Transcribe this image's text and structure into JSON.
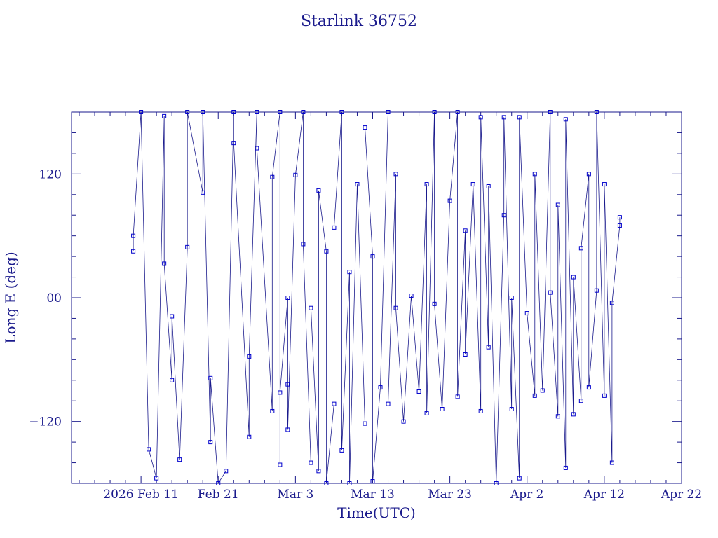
{
  "colors": {
    "frame": "#1a1a8c",
    "series": "#1a1a8c",
    "marker": "#0000cc",
    "background": "#ffffff"
  },
  "chart_data": {
    "type": "line",
    "title": "Starlink 36752",
    "xlabel": "Time(UTC)",
    "ylabel": "Long E (deg)",
    "x_tick_labels": [
      "2026 Feb 11",
      "Feb 21",
      "Mar  3",
      "Mar 13",
      "Mar 23",
      "Apr  2",
      "Apr 12",
      "Apr 22"
    ],
    "y_tick_labels": [
      "−120",
      "00",
      "120"
    ],
    "xlim": [
      "2026-02-02",
      "2026-04-22"
    ],
    "ylim": [
      -180,
      180
    ],
    "grid": false,
    "legend": "none",
    "series": [
      {
        "points": [
          [
            "2026-02-10",
            45
          ],
          [
            "2026-02-10",
            60
          ],
          [
            "2026-02-11",
            180
          ],
          [
            "2026-02-12",
            -147
          ],
          [
            "2026-02-13",
            -175
          ],
          [
            "2026-02-14",
            176
          ],
          [
            "2026-02-14",
            33
          ],
          [
            "2026-02-15",
            -80
          ],
          [
            "2026-02-15",
            -18
          ],
          [
            "2026-02-16",
            -157
          ],
          [
            "2026-02-17",
            49
          ],
          [
            "2026-02-17",
            180
          ],
          [
            "2026-02-19",
            102
          ],
          [
            "2026-02-19",
            180
          ],
          [
            "2026-02-20",
            -140
          ],
          [
            "2026-02-20",
            -78
          ],
          [
            "2026-02-21",
            -180
          ],
          [
            "2026-02-22",
            -168
          ],
          [
            "2026-02-23",
            180
          ],
          [
            "2026-02-23",
            150
          ],
          [
            "2026-02-25",
            -135
          ],
          [
            "2026-02-25",
            -57
          ],
          [
            "2026-02-26",
            180
          ],
          [
            "2026-02-26",
            145
          ],
          [
            "2026-02-28",
            -110
          ],
          [
            "2026-02-28",
            117
          ],
          [
            "2026-03-01",
            180
          ],
          [
            "2026-03-01",
            -162
          ],
          [
            "2026-03-01",
            -92
          ],
          [
            "2026-03-02",
            0
          ],
          [
            "2026-03-02",
            -84
          ],
          [
            "2026-03-02",
            -128
          ],
          [
            "2026-03-03",
            119
          ],
          [
            "2026-03-04",
            180
          ],
          [
            "2026-03-04",
            52
          ],
          [
            "2026-03-05",
            -160
          ],
          [
            "2026-03-05",
            -10
          ],
          [
            "2026-03-06",
            -168
          ],
          [
            "2026-03-06",
            104
          ],
          [
            "2026-03-07",
            45
          ],
          [
            "2026-03-07",
            -180
          ],
          [
            "2026-03-08",
            -103
          ],
          [
            "2026-03-08",
            68
          ],
          [
            "2026-03-09",
            180
          ],
          [
            "2026-03-09",
            -148
          ],
          [
            "2026-03-10",
            25
          ],
          [
            "2026-03-10",
            -180
          ],
          [
            "2026-03-11",
            110
          ],
          [
            "2026-03-12",
            -122
          ],
          [
            "2026-03-12",
            165
          ],
          [
            "2026-03-13",
            40
          ],
          [
            "2026-03-13",
            -178
          ],
          [
            "2026-03-14",
            -87
          ],
          [
            "2026-03-15",
            180
          ],
          [
            "2026-03-15",
            -103
          ],
          [
            "2026-03-16",
            120
          ],
          [
            "2026-03-16",
            -10
          ],
          [
            "2026-03-17",
            -120
          ],
          [
            "2026-03-18",
            2
          ],
          [
            "2026-03-19",
            -91
          ],
          [
            "2026-03-20",
            110
          ],
          [
            "2026-03-20",
            -112
          ],
          [
            "2026-03-21",
            180
          ],
          [
            "2026-03-21",
            -6
          ],
          [
            "2026-03-22",
            -108
          ],
          [
            "2026-03-23",
            94
          ],
          [
            "2026-03-24",
            180
          ],
          [
            "2026-03-24",
            -96
          ],
          [
            "2026-03-25",
            65
          ],
          [
            "2026-03-25",
            -55
          ],
          [
            "2026-03-26",
            110
          ],
          [
            "2026-03-27",
            -110
          ],
          [
            "2026-03-27",
            175
          ],
          [
            "2026-03-28",
            -48
          ],
          [
            "2026-03-28",
            108
          ],
          [
            "2026-03-29",
            -180
          ],
          [
            "2026-03-30",
            80
          ],
          [
            "2026-03-30",
            175
          ],
          [
            "2026-03-31",
            -108
          ],
          [
            "2026-03-31",
            0
          ],
          [
            "2026-04-01",
            -175
          ],
          [
            "2026-04-01",
            175
          ],
          [
            "2026-04-02",
            -15
          ],
          [
            "2026-04-03",
            -95
          ],
          [
            "2026-04-03",
            120
          ],
          [
            "2026-04-04",
            -90
          ],
          [
            "2026-04-05",
            180
          ],
          [
            "2026-04-05",
            5
          ],
          [
            "2026-04-06",
            -115
          ],
          [
            "2026-04-06",
            90
          ],
          [
            "2026-04-07",
            -165
          ],
          [
            "2026-04-07",
            173
          ],
          [
            "2026-04-08",
            -113
          ],
          [
            "2026-04-08",
            20
          ],
          [
            "2026-04-09",
            -100
          ],
          [
            "2026-04-09",
            48
          ],
          [
            "2026-04-10",
            120
          ],
          [
            "2026-04-10",
            -87
          ],
          [
            "2026-04-11",
            7
          ],
          [
            "2026-04-11",
            180
          ],
          [
            "2026-04-12",
            -95
          ],
          [
            "2026-04-12",
            110
          ],
          [
            "2026-04-13",
            -160
          ],
          [
            "2026-04-13",
            -5
          ],
          [
            "2026-04-14",
            70
          ],
          [
            "2026-04-14",
            78
          ]
        ]
      }
    ]
  }
}
